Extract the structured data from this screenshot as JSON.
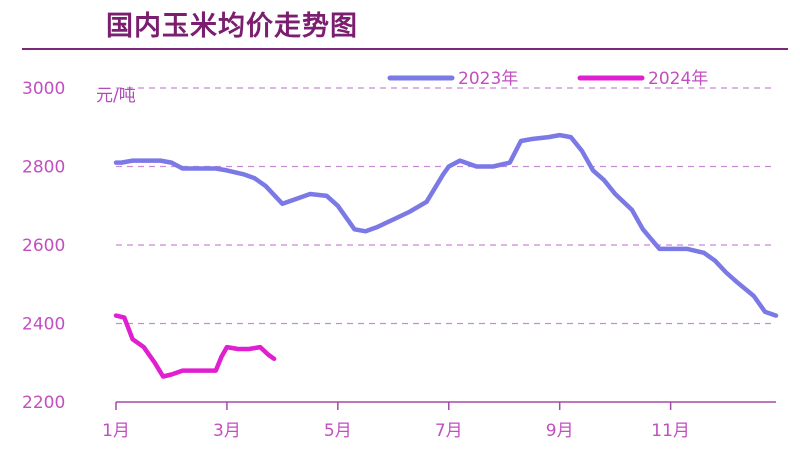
{
  "title": "国内玉米均价走势图",
  "chart_data": {
    "type": "line",
    "title": "国内玉米均价走势图",
    "ylabel": "元/吨",
    "xlabel": "",
    "ylim": [
      2200,
      3000
    ],
    "yticks": [
      2200,
      2400,
      2600,
      2800,
      3000
    ],
    "xticks": [
      "1月",
      "3月",
      "5月",
      "7月",
      "9月",
      "11月"
    ],
    "xtick_months": [
      1,
      3,
      5,
      7,
      9,
      11
    ],
    "xlim": [
      1,
      12.9
    ],
    "grid": "horizontal dashed",
    "legend_position": "top-right",
    "series": [
      {
        "name": "2023年",
        "color": "#7b79e6",
        "x": [
          1.0,
          1.1,
          1.3,
          1.5,
          1.8,
          2.0,
          2.2,
          2.5,
          2.8,
          3.0,
          3.3,
          3.5,
          3.7,
          4.0,
          4.2,
          4.5,
          4.8,
          5.0,
          5.3,
          5.5,
          5.7,
          6.0,
          6.3,
          6.6,
          6.9,
          7.0,
          7.2,
          7.5,
          7.8,
          8.1,
          8.3,
          8.5,
          8.8,
          9.0,
          9.2,
          9.4,
          9.6,
          9.8,
          10.0,
          10.3,
          10.5,
          10.8,
          11.0,
          11.3,
          11.6,
          11.8,
          12.0,
          12.2,
          12.5,
          12.7,
          12.9
        ],
        "values": [
          2810,
          2810,
          2815,
          2815,
          2815,
          2810,
          2795,
          2795,
          2795,
          2790,
          2780,
          2770,
          2750,
          2705,
          2715,
          2730,
          2725,
          2700,
          2640,
          2635,
          2645,
          2665,
          2685,
          2710,
          2780,
          2800,
          2815,
          2800,
          2800,
          2810,
          2865,
          2870,
          2875,
          2880,
          2875,
          2840,
          2790,
          2765,
          2730,
          2690,
          2640,
          2590,
          2590,
          2590,
          2580,
          2560,
          2530,
          2505,
          2470,
          2430,
          2420
        ]
      },
      {
        "name": "2024年",
        "color": "#e020d0",
        "x": [
          1.0,
          1.15,
          1.3,
          1.5,
          1.7,
          1.85,
          2.0,
          2.2,
          2.5,
          2.8,
          2.9,
          3.0,
          3.2,
          3.4,
          3.6,
          3.75,
          3.85
        ],
        "values": [
          2420,
          2415,
          2360,
          2340,
          2300,
          2265,
          2270,
          2280,
          2280,
          2280,
          2315,
          2340,
          2335,
          2335,
          2340,
          2320,
          2310
        ]
      }
    ]
  }
}
